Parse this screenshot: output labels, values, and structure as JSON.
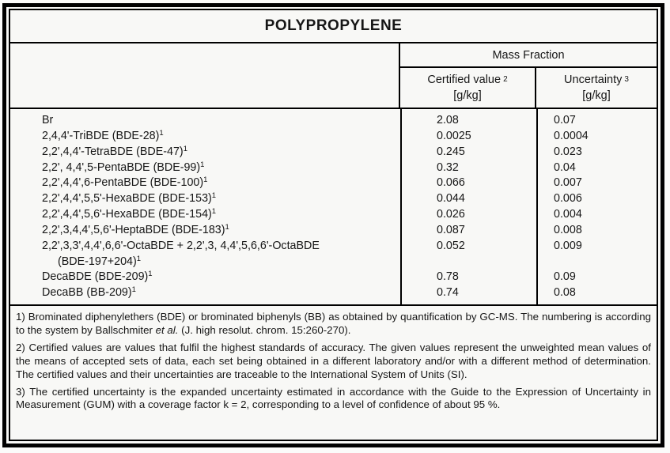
{
  "title": "POLYPROPYLENE",
  "table": {
    "group_header": "Mass Fraction",
    "columns": [
      {
        "label": "Certified value",
        "sup": "2",
        "unit": "[g/kg]"
      },
      {
        "label": "Uncertainty",
        "sup": "3",
        "unit": "[g/kg]"
      }
    ],
    "rows": [
      {
        "name": "Br",
        "sup": "",
        "wrap": "",
        "wrap_sup": "",
        "certified": "2.08",
        "uncertainty": "0.07"
      },
      {
        "name": "2,4,4'-TriBDE (BDE-28)",
        "sup": "1",
        "wrap": "",
        "wrap_sup": "",
        "certified": "0.0025",
        "uncertainty": "0.0004"
      },
      {
        "name": "2,2',4,4'-TetraBDE (BDE-47)",
        "sup": "1",
        "wrap": "",
        "wrap_sup": "",
        "certified": "0.245",
        "uncertainty": "0.023"
      },
      {
        "name": "2,2', 4,4',5-PentaBDE (BDE-99)",
        "sup": "1",
        "wrap": "",
        "wrap_sup": "",
        "certified": "0.32",
        "uncertainty": "0.04"
      },
      {
        "name": "2,2',4,4',6-PentaBDE (BDE-100)",
        "sup": "1",
        "wrap": "",
        "wrap_sup": "",
        "certified": "0.066",
        "uncertainty": "0.007"
      },
      {
        "name": "2,2',4,4',5,5'-HexaBDE (BDE-153)",
        "sup": "1",
        "wrap": "",
        "wrap_sup": "",
        "certified": "0.044",
        "uncertainty": "0.006"
      },
      {
        "name": "2,2',4,4',5,6'-HexaBDE (BDE-154)",
        "sup": "1",
        "wrap": "",
        "wrap_sup": "",
        "certified": "0.026",
        "uncertainty": "0.004"
      },
      {
        "name": "2,2',3,4,4',5,6'-HeptaBDE (BDE-183)",
        "sup": "1",
        "wrap": "",
        "wrap_sup": "",
        "certified": "0.087",
        "uncertainty": "0.008"
      },
      {
        "name": "2,2',3,3',4,4',6,6'-OctaBDE + 2,2',3, 4,4',5,6,6'-OctaBDE",
        "sup": "",
        "wrap": "(BDE-197+204)",
        "wrap_sup": "1",
        "certified": "0.052",
        "uncertainty": "0.009"
      },
      {
        "name": "DecaBDE (BDE-209)",
        "sup": "1",
        "wrap": "",
        "wrap_sup": "",
        "certified": "0.78",
        "uncertainty": "0.09"
      },
      {
        "name": "DecaBB (BB-209)",
        "sup": "1",
        "wrap": "",
        "wrap_sup": "",
        "certified": "0.74",
        "uncertainty": "0.08"
      }
    ]
  },
  "footnotes": {
    "f1": {
      "pre": "1) Brominated diphenylethers (BDE) or brominated biphenyls (BB) as obtained by quantification by GC-MS. The numbering is according to the system by Ballschmiter ",
      "italic": "et al.",
      "post": " (J. high resolut. chrom. 15:260-270)."
    },
    "f2": "2) Certified values are values that fulfil the highest standards of accuracy. The given values represent the unweighted mean values of the means of accepted sets of data, each set being obtained in a different laboratory and/or with a different method of determination. The certified values and their uncertainties are traceable to the International System of Units (SI).",
    "f3": "3) The certified uncertainty is the expanded uncertainty estimated in accordance with the Guide to the Expression of Uncertainty in Measurement (GUM) with a coverage factor k = 2, corresponding to a level of confidence of about 95 %."
  }
}
